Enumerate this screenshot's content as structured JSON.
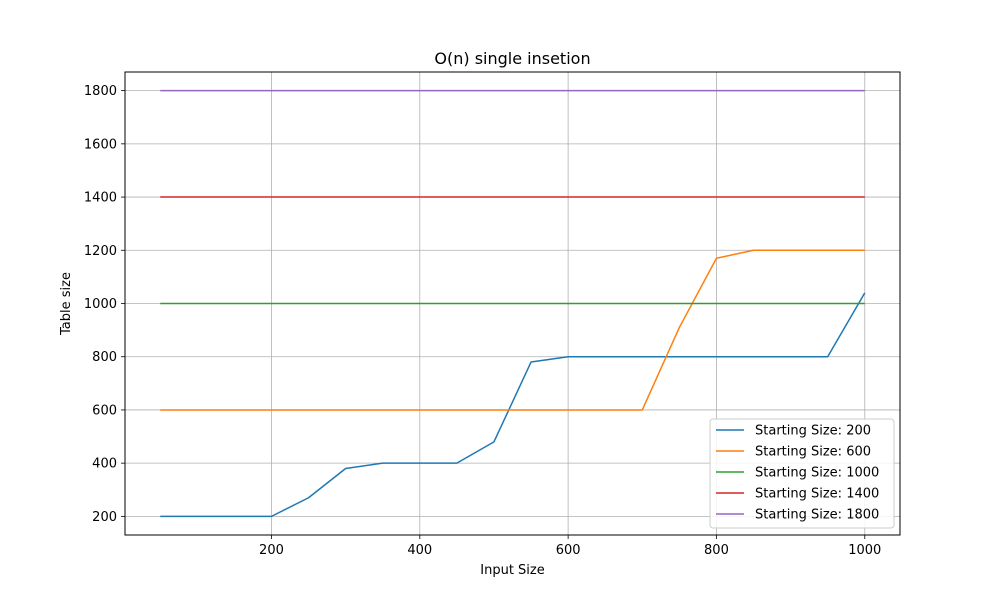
{
  "chart_data": {
    "type": "line",
    "title": "O(n) single insetion",
    "xlabel": "Input Size",
    "ylabel": "Table size",
    "xlim": [
      2.5,
      1047.5
    ],
    "ylim": [
      130,
      1870
    ],
    "xticks": [
      200,
      400,
      600,
      800,
      1000
    ],
    "yticks": [
      200,
      400,
      600,
      800,
      1000,
      1200,
      1400,
      1600,
      1800
    ],
    "grid": true,
    "legend_position": "lower right",
    "x": [
      50,
      100,
      150,
      200,
      250,
      300,
      350,
      400,
      450,
      500,
      550,
      600,
      650,
      700,
      750,
      800,
      850,
      900,
      950,
      1000
    ],
    "series": [
      {
        "name": "Starting Size: 200",
        "color": "#1f77b4",
        "values": [
          200,
          200,
          200,
          200,
          270,
          380,
          400,
          400,
          400,
          480,
          780,
          800,
          800,
          800,
          800,
          800,
          800,
          800,
          800,
          1040
        ]
      },
      {
        "name": "Starting Size: 600",
        "color": "#ff7f0e",
        "values": [
          600,
          600,
          600,
          600,
          600,
          600,
          600,
          600,
          600,
          600,
          600,
          600,
          600,
          600,
          910,
          1170,
          1200,
          1200,
          1200,
          1200
        ]
      },
      {
        "name": "Starting Size: 1000",
        "color": "#2ca02c",
        "values": [
          1000,
          1000,
          1000,
          1000,
          1000,
          1000,
          1000,
          1000,
          1000,
          1000,
          1000,
          1000,
          1000,
          1000,
          1000,
          1000,
          1000,
          1000,
          1000,
          1000
        ]
      },
      {
        "name": "Starting Size: 1400",
        "color": "#d62728",
        "values": [
          1400,
          1400,
          1400,
          1400,
          1400,
          1400,
          1400,
          1400,
          1400,
          1400,
          1400,
          1400,
          1400,
          1400,
          1400,
          1400,
          1400,
          1400,
          1400,
          1400
        ]
      },
      {
        "name": "Starting Size: 1800",
        "color": "#9467bd",
        "values": [
          1800,
          1800,
          1800,
          1800,
          1800,
          1800,
          1800,
          1800,
          1800,
          1800,
          1800,
          1800,
          1800,
          1800,
          1800,
          1800,
          1800,
          1800,
          1800,
          1800
        ]
      }
    ]
  }
}
